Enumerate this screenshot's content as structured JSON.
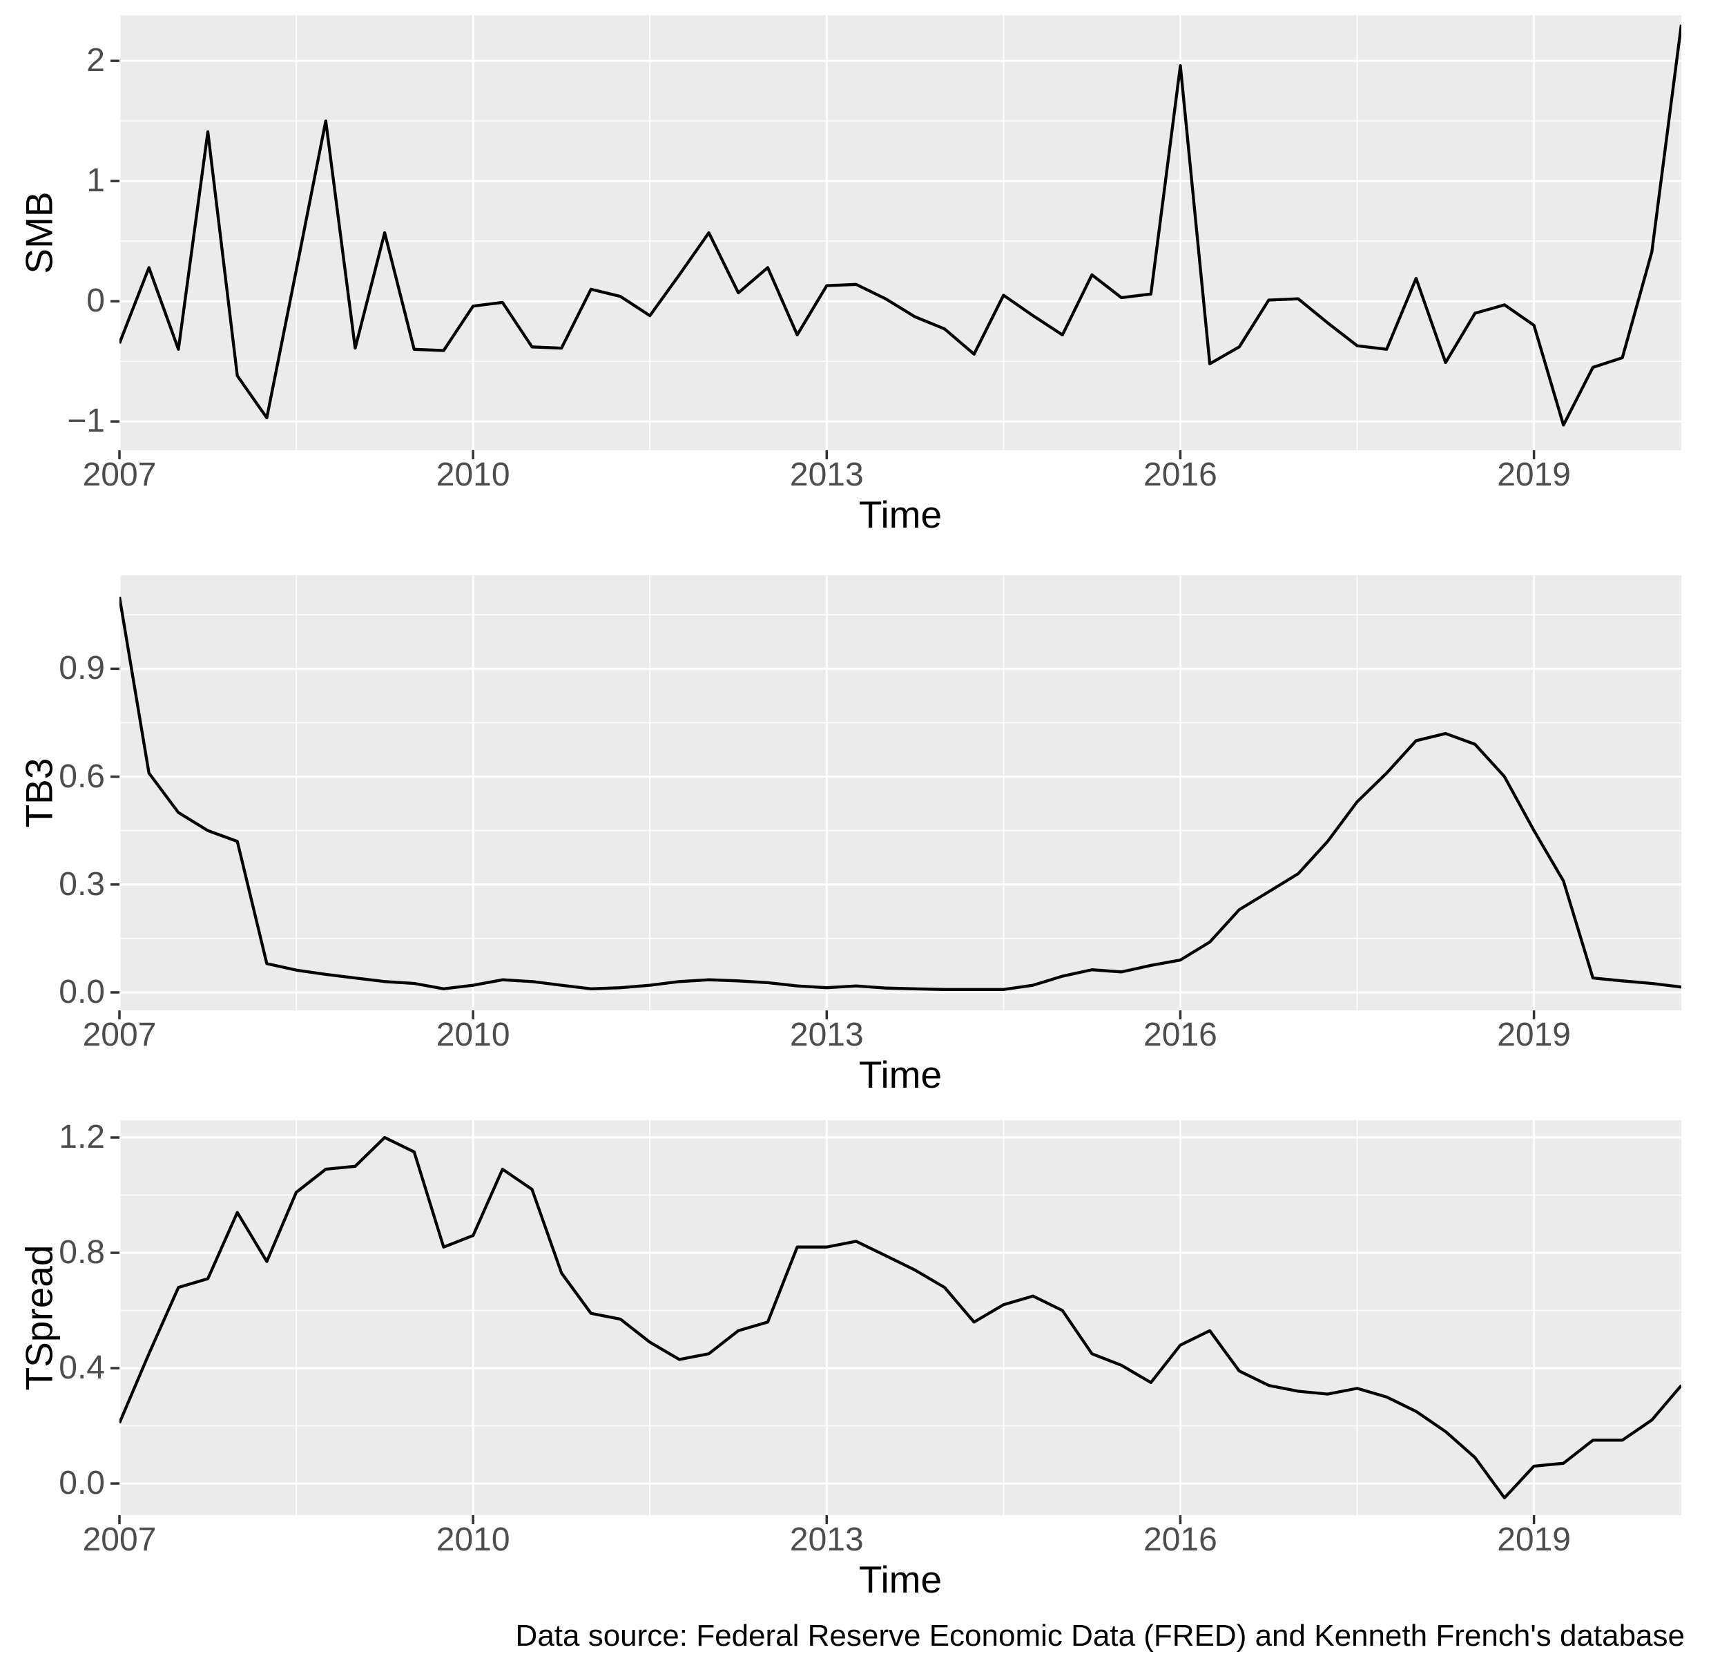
{
  "style": {
    "background": "#FFFFFF",
    "panel_background": "#EBEBEB",
    "grid_color": "#FFFFFF",
    "line_color": "#000000",
    "axis_text_color": "#4D4D4D",
    "tick_mark_color": "#333333",
    "title_text_color": "#000000"
  },
  "chart_data": {
    "type": "line",
    "layout": "three stacked time-series panels sharing one quarterly time axis, ggplot2 gray theme, grid on, no legend",
    "x_label": "Time",
    "caption": "Data source: Federal Reserve Economic Data (FRED) and Kenneth French's database",
    "x_range": [
      2007,
      2020.25
    ],
    "x_ticks": [
      2007,
      2010,
      2013,
      2016,
      2019
    ],
    "x_tick_labels": [
      "2007",
      "2010",
      "2013",
      "2016",
      "2019"
    ],
    "x_minor_ticks": [
      2008.5,
      2011.5,
      2014.5,
      2017.5
    ],
    "x": [
      2007.0,
      2007.25,
      2007.5,
      2007.75,
      2008.0,
      2008.25,
      2008.5,
      2008.75,
      2009.0,
      2009.25,
      2009.5,
      2009.75,
      2010.0,
      2010.25,
      2010.5,
      2010.75,
      2011.0,
      2011.25,
      2011.5,
      2011.75,
      2012.0,
      2012.25,
      2012.5,
      2012.75,
      2013.0,
      2013.25,
      2013.5,
      2013.75,
      2014.0,
      2014.25,
      2014.5,
      2014.75,
      2015.0,
      2015.25,
      2015.5,
      2015.75,
      2016.0,
      2016.25,
      2016.5,
      2016.75,
      2017.0,
      2017.25,
      2017.5,
      2017.75,
      2018.0,
      2018.25,
      2018.5,
      2018.75,
      2019.0,
      2019.25,
      2019.5,
      2019.75,
      2020.0,
      2020.25
    ],
    "series": [
      {
        "name": "SMB",
        "ylabel": "SMB",
        "y_range": [
          -1.24,
          2.38
        ],
        "y_ticks": [
          -1,
          0,
          1,
          2
        ],
        "y_tick_labels": [
          "−1",
          "0",
          "1",
          "2"
        ],
        "y_minor_ticks": [
          -0.5,
          0.5,
          1.5
        ],
        "values": [
          -0.35,
          0.28,
          -0.4,
          1.41,
          -0.62,
          -0.97,
          0.26,
          1.5,
          -0.39,
          0.57,
          -0.4,
          -0.41,
          -0.04,
          -0.01,
          -0.38,
          -0.39,
          0.1,
          0.04,
          -0.12,
          0.22,
          0.57,
          0.07,
          0.28,
          -0.28,
          0.13,
          0.14,
          0.02,
          -0.13,
          -0.23,
          -0.44,
          0.05,
          -0.12,
          -0.28,
          0.22,
          0.03,
          0.06,
          1.96,
          -0.52,
          -0.38,
          0.01,
          0.02,
          -0.18,
          -0.37,
          -0.4,
          0.19,
          -0.51,
          -0.1,
          -0.03,
          -0.2,
          -1.03,
          -0.55,
          -0.47,
          0.41,
          2.3
        ]
      },
      {
        "name": "TB3",
        "ylabel": "TB3",
        "y_range": [
          -0.05,
          1.16
        ],
        "y_ticks": [
          0.0,
          0.3,
          0.6,
          0.9
        ],
        "y_tick_labels": [
          "0.0",
          "0.3",
          "0.6",
          "0.9"
        ],
        "y_minor_ticks": [
          0.15,
          0.45,
          0.75,
          1.05
        ],
        "values": [
          1.1,
          0.61,
          0.5,
          0.45,
          0.42,
          0.08,
          0.062,
          0.05,
          0.04,
          0.03,
          0.025,
          0.01,
          0.02,
          0.035,
          0.03,
          0.02,
          0.01,
          0.013,
          0.02,
          0.03,
          0.035,
          0.032,
          0.027,
          0.018,
          0.013,
          0.018,
          0.012,
          0.01,
          0.008,
          0.008,
          0.008,
          0.02,
          0.045,
          0.063,
          0.057,
          0.075,
          0.09,
          0.14,
          0.23,
          0.28,
          0.33,
          0.42,
          0.53,
          0.61,
          0.7,
          0.72,
          0.69,
          0.6,
          0.45,
          0.31,
          0.04,
          0.032,
          0.025,
          0.015
        ]
      },
      {
        "name": "TSpread",
        "ylabel": "TSpread",
        "y_range": [
          -0.11,
          1.26
        ],
        "y_ticks": [
          0.0,
          0.4,
          0.8,
          1.2
        ],
        "y_tick_labels": [
          "0.0",
          "0.4",
          "0.8",
          "1.2"
        ],
        "y_minor_ticks": [
          0.2,
          0.6,
          1.0
        ],
        "values": [
          0.21,
          0.45,
          0.68,
          0.71,
          0.94,
          0.77,
          1.01,
          1.09,
          1.1,
          1.2,
          1.15,
          0.82,
          0.86,
          1.09,
          1.02,
          0.73,
          0.59,
          0.57,
          0.49,
          0.43,
          0.45,
          0.53,
          0.56,
          0.82,
          0.82,
          0.84,
          0.79,
          0.74,
          0.68,
          0.56,
          0.62,
          0.65,
          0.6,
          0.45,
          0.41,
          0.35,
          0.48,
          0.53,
          0.39,
          0.34,
          0.32,
          0.31,
          0.33,
          0.3,
          0.25,
          0.18,
          0.09,
          -0.05,
          0.06,
          0.07,
          0.15,
          0.15,
          0.22,
          0.34
        ]
      }
    ]
  }
}
